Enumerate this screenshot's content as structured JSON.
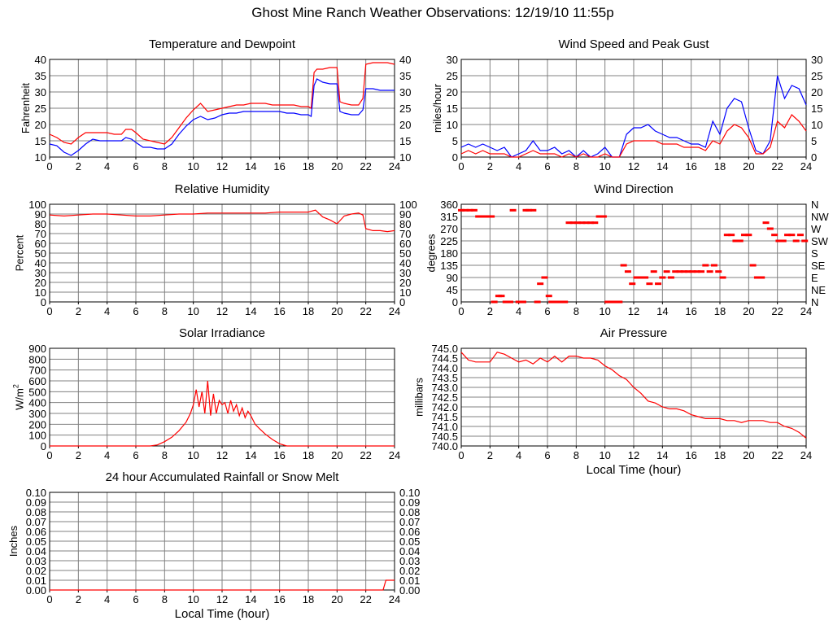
{
  "page_title": "Ghost Mine Ranch Weather Observations: 12/19/10 11:55p",
  "colors": {
    "red": "#ff0000",
    "blue": "#0000ff",
    "grid": "#808080"
  },
  "chart_data": [
    {
      "id": "temp",
      "type": "line",
      "title": "Temperature and Dewpoint",
      "ylabel": "Fahrenheit",
      "xlim": [
        0,
        24
      ],
      "ylim": [
        10,
        40
      ],
      "xticks": [
        0,
        2,
        4,
        6,
        8,
        10,
        12,
        14,
        16,
        18,
        20,
        22,
        24
      ],
      "yticks": [
        10,
        15,
        20,
        25,
        30,
        35,
        40
      ],
      "right_axis": true,
      "grid": true,
      "series": [
        {
          "color": "#ff0000",
          "x": [
            0,
            0.5,
            1,
            1.5,
            2,
            2.5,
            3,
            3.5,
            4,
            4.5,
            5,
            5.3,
            5.7,
            6,
            6.5,
            7,
            7.5,
            8,
            8.5,
            9,
            9.5,
            10,
            10.5,
            11,
            11.5,
            12,
            12.5,
            13,
            13.5,
            14,
            14.5,
            15,
            15.5,
            16,
            16.5,
            17,
            17.5,
            18,
            18.2,
            18.4,
            18.6,
            19,
            19.5,
            20,
            20.2,
            20.5,
            21,
            21.5,
            21.8,
            22,
            22.5,
            23,
            23.5,
            24
          ],
          "y": [
            17,
            16,
            14.5,
            14,
            16,
            17.5,
            17.5,
            17.5,
            17.5,
            17,
            17,
            18.5,
            18.5,
            17.5,
            15.5,
            15,
            14.5,
            14,
            16,
            19,
            22,
            24.5,
            26.5,
            24,
            24.5,
            25,
            25.5,
            26,
            26,
            26.5,
            26.5,
            26.5,
            26,
            26,
            26,
            26,
            25.5,
            25.5,
            25,
            36,
            37,
            37,
            37.5,
            37.5,
            27,
            26.5,
            26,
            26,
            28,
            38.5,
            39,
            39,
            39,
            38.5
          ]
        },
        {
          "color": "#0000ff",
          "x": [
            0,
            0.5,
            1,
            1.5,
            2,
            2.5,
            3,
            3.5,
            4,
            4.5,
            5,
            5.3,
            5.7,
            6,
            6.5,
            7,
            7.5,
            8,
            8.5,
            9,
            9.5,
            10,
            10.5,
            11,
            11.5,
            12,
            12.5,
            13,
            13.5,
            14,
            14.5,
            15,
            15.5,
            16,
            16.5,
            17,
            17.5,
            18,
            18.2,
            18.4,
            18.6,
            19,
            19.5,
            20,
            20.2,
            20.5,
            21,
            21.5,
            21.8,
            22,
            22.5,
            23,
            23.5,
            24
          ],
          "y": [
            14,
            13.5,
            11.5,
            10.5,
            12,
            14,
            15.5,
            15,
            15,
            15,
            15,
            16,
            15.5,
            14.5,
            13,
            13,
            12.5,
            12.5,
            14,
            17,
            19.5,
            21.5,
            22.5,
            21.5,
            22,
            23,
            23.5,
            23.5,
            24,
            24,
            24,
            24,
            24,
            24,
            23.5,
            23.5,
            23,
            23,
            22.5,
            32,
            34,
            33,
            32.5,
            32.5,
            24,
            23.5,
            23,
            23,
            24.5,
            31,
            31,
            30.5,
            30.5,
            30.5
          ]
        }
      ]
    },
    {
      "id": "wind",
      "type": "line",
      "title": "Wind Speed and Peak Gust",
      "ylabel": "miles/hour",
      "xlim": [
        0,
        24
      ],
      "ylim": [
        0,
        30
      ],
      "xticks": [
        0,
        2,
        4,
        6,
        8,
        10,
        12,
        14,
        16,
        18,
        20,
        22,
        24
      ],
      "yticks": [
        0,
        5,
        10,
        15,
        20,
        25,
        30
      ],
      "right_axis": true,
      "grid": true,
      "series": [
        {
          "color": "#0000ff",
          "x": [
            0,
            0.5,
            1,
            1.5,
            2,
            2.5,
            3,
            3.5,
            4,
            4.5,
            5,
            5.5,
            6,
            6.5,
            7,
            7.5,
            8,
            8.5,
            9,
            9.5,
            10,
            10.5,
            11,
            11.5,
            12,
            12.5,
            13,
            13.5,
            14,
            14.5,
            15,
            15.5,
            16,
            16.5,
            17,
            17.5,
            18,
            18.5,
            19,
            19.5,
            20,
            20.5,
            21,
            21.5,
            22,
            22.5,
            23,
            23.5,
            24
          ],
          "y": [
            3,
            4,
            3,
            4,
            3,
            2,
            3,
            0,
            1,
            2,
            5,
            2,
            2,
            3,
            1,
            2,
            0,
            2,
            0,
            1,
            3,
            0,
            0,
            7,
            9,
            9,
            10,
            8,
            7,
            6,
            6,
            5,
            4,
            4,
            3,
            11,
            7,
            15,
            18,
            17,
            9,
            2,
            1,
            5,
            25,
            18,
            22,
            21,
            16
          ]
        },
        {
          "color": "#ff0000",
          "x": [
            0,
            0.5,
            1,
            1.5,
            2,
            2.5,
            3,
            3.5,
            4,
            4.5,
            5,
            5.5,
            6,
            6.5,
            7,
            7.5,
            8,
            8.5,
            9,
            9.5,
            10,
            10.5,
            11,
            11.5,
            12,
            12.5,
            13,
            13.5,
            14,
            14.5,
            15,
            15.5,
            16,
            16.5,
            17,
            17.5,
            18,
            18.5,
            19,
            19.5,
            20,
            20.5,
            21,
            21.5,
            22,
            22.5,
            23,
            23.5,
            24
          ],
          "y": [
            1,
            2,
            1,
            2,
            1,
            1,
            1,
            0,
            0,
            1,
            2,
            1,
            1,
            1,
            0,
            1,
            0,
            1,
            0,
            0,
            1,
            0,
            0,
            4,
            5,
            5,
            5,
            5,
            4,
            4,
            4,
            3,
            3,
            3,
            2,
            5,
            4,
            8,
            10,
            9,
            6,
            1,
            1,
            3,
            11,
            9,
            13,
            11,
            8
          ]
        }
      ]
    },
    {
      "id": "rh",
      "type": "line",
      "title": "Relative Humidity",
      "ylabel": "Percent",
      "xlim": [
        0,
        24
      ],
      "ylim": [
        0,
        100
      ],
      "xticks": [
        0,
        2,
        4,
        6,
        8,
        10,
        12,
        14,
        16,
        18,
        20,
        22,
        24
      ],
      "yticks": [
        0,
        10,
        20,
        30,
        40,
        50,
        60,
        70,
        80,
        90,
        100
      ],
      "right_axis": true,
      "grid": true,
      "series": [
        {
          "color": "#ff0000",
          "x": [
            0,
            1,
            2,
            3,
            4,
            5,
            6,
            7,
            8,
            9,
            10,
            11,
            12,
            13,
            14,
            15,
            16,
            17,
            18,
            18.5,
            19,
            19.5,
            20,
            20.5,
            21,
            21.5,
            21.8,
            22,
            22.5,
            23,
            23.5,
            24
          ],
          "y": [
            89,
            88,
            89,
            90,
            90,
            89,
            88,
            88,
            89,
            90,
            90,
            91,
            91,
            91,
            91,
            91,
            92,
            92,
            92,
            94,
            87,
            84,
            80,
            88,
            90,
            91,
            89,
            75,
            73,
            73,
            72,
            73
          ]
        }
      ]
    },
    {
      "id": "wdir",
      "type": "scatter",
      "title": "Wind Direction",
      "ylabel": "degrees",
      "xlim": [
        0,
        24
      ],
      "ylim": [
        0,
        360
      ],
      "xticks": [
        0,
        2,
        4,
        6,
        8,
        10,
        12,
        14,
        16,
        18,
        20,
        22,
        24
      ],
      "yticks": [
        0,
        45,
        90,
        135,
        180,
        225,
        270,
        315,
        360
      ],
      "right_labels": [
        "N",
        "NE",
        "E",
        "SE",
        "S",
        "SW",
        "W",
        "NW",
        "N"
      ],
      "grid": true,
      "series": [
        {
          "color": "#ff0000",
          "x": [
            0,
            0.3,
            0.6,
            0.9,
            1.2,
            1.5,
            1.8,
            2.1,
            2.3,
            2.6,
            2.8,
            3.1,
            3.4,
            3.6,
            4.0,
            4.3,
            4.5,
            4.7,
            5.0,
            5.3,
            5.5,
            5.8,
            6.1,
            6.3,
            6.6,
            6.9,
            7.2,
            7.5,
            7.8,
            8.1,
            8.4,
            8.7,
            9.0,
            9.3,
            9.6,
            9.9,
            10.2,
            10.6,
            11.0,
            11.3,
            11.6,
            11.9,
            12.2,
            12.5,
            12.8,
            13.1,
            13.4,
            13.7,
            14.0,
            14.3,
            14.6,
            14.9,
            15.2,
            15.5,
            15.8,
            16.1,
            16.4,
            16.7,
            17.0,
            17.3,
            17.6,
            17.9,
            18.2,
            18.5,
            18.8,
            19.1,
            19.4,
            19.7,
            20.0,
            20.3,
            20.6,
            20.9,
            21.2,
            21.5,
            21.8,
            22.1,
            22.4,
            22.7,
            23.0,
            23.3,
            23.6,
            23.9
          ],
          "y": [
            338,
            338,
            338,
            338,
            315,
            315,
            315,
            315,
            0,
            22,
            22,
            0,
            0,
            338,
            0,
            0,
            338,
            338,
            338,
            0,
            67,
            90,
            22,
            0,
            0,
            0,
            0,
            292,
            292,
            292,
            292,
            292,
            292,
            292,
            315,
            315,
            0,
            0,
            0,
            135,
            112,
            67,
            90,
            90,
            90,
            67,
            112,
            67,
            90,
            112,
            90,
            112,
            112,
            112,
            112,
            112,
            112,
            112,
            135,
            112,
            135,
            112,
            90,
            247,
            247,
            225,
            225,
            247,
            247,
            135,
            90,
            90,
            292,
            270,
            247,
            225,
            225,
            247,
            247,
            225,
            247,
            225
          ]
        }
      ]
    },
    {
      "id": "solar",
      "type": "line",
      "title": "Solar Irradiance",
      "ylabel": "W/m2",
      "xlim": [
        0,
        24
      ],
      "ylim": [
        0,
        900
      ],
      "xticks": [
        0,
        2,
        4,
        6,
        8,
        10,
        12,
        14,
        16,
        18,
        20,
        22,
        24
      ],
      "yticks": [
        0,
        100,
        200,
        300,
        400,
        500,
        600,
        700,
        800,
        900
      ],
      "right_axis": false,
      "grid": true,
      "series": [
        {
          "color": "#ff0000",
          "x": [
            0,
            7,
            7.5,
            8,
            8.5,
            9,
            9.5,
            9.8,
            10,
            10.2,
            10.4,
            10.6,
            10.8,
            11,
            11.2,
            11.4,
            11.6,
            11.8,
            12,
            12.2,
            12.4,
            12.6,
            12.8,
            13,
            13.2,
            13.4,
            13.6,
            13.8,
            14,
            14.3,
            14.6,
            15,
            15.5,
            16,
            16.5,
            24
          ],
          "y": [
            0,
            0,
            10,
            40,
            80,
            140,
            220,
            300,
            380,
            520,
            360,
            500,
            300,
            600,
            280,
            480,
            300,
            420,
            380,
            400,
            300,
            420,
            320,
            380,
            280,
            350,
            260,
            320,
            280,
            200,
            160,
            110,
            60,
            20,
            0,
            0
          ]
        }
      ]
    },
    {
      "id": "pressure",
      "type": "line",
      "title": "Air Pressure",
      "ylabel": "millibars",
      "xlabel": "Local Time (hour)",
      "xlim": [
        0,
        24
      ],
      "ylim": [
        740.0,
        745.0
      ],
      "xticks": [
        0,
        2,
        4,
        6,
        8,
        10,
        12,
        14,
        16,
        18,
        20,
        22,
        24
      ],
      "yticks": [
        740.0,
        740.5,
        741.0,
        741.5,
        742.0,
        742.5,
        743.0,
        743.5,
        744.0,
        744.5,
        745.0
      ],
      "ytick_labels": [
        "740.0",
        "740.5",
        "741.0",
        "741.5",
        "742.0",
        "742.5",
        "743.0",
        "743.5",
        "744.0",
        "744.5",
        "745.0"
      ],
      "right_axis": false,
      "grid": true,
      "series": [
        {
          "color": "#ff0000",
          "x": [
            0,
            0.5,
            1,
            1.5,
            2,
            2.5,
            3,
            3.5,
            4,
            4.5,
            5,
            5.5,
            6,
            6.5,
            7,
            7.5,
            8,
            8.5,
            9,
            9.5,
            10,
            10.5,
            11,
            11.5,
            12,
            12.5,
            13,
            13.5,
            14,
            14.5,
            15,
            15.5,
            16,
            16.5,
            17,
            17.5,
            18,
            18.5,
            19,
            19.5,
            20,
            20.5,
            21,
            21.5,
            22,
            22.5,
            23,
            23.5,
            24
          ],
          "y": [
            744.8,
            744.4,
            744.3,
            744.3,
            744.3,
            744.8,
            744.7,
            744.5,
            744.3,
            744.4,
            744.2,
            744.5,
            744.3,
            744.6,
            744.3,
            744.6,
            744.6,
            744.5,
            744.5,
            744.4,
            744.1,
            743.9,
            743.6,
            743.4,
            743.0,
            742.7,
            742.3,
            742.2,
            742.0,
            741.9,
            741.9,
            741.8,
            741.6,
            741.5,
            741.4,
            741.4,
            741.4,
            741.3,
            741.3,
            741.2,
            741.3,
            741.3,
            741.3,
            741.2,
            741.2,
            741.0,
            740.9,
            740.7,
            740.4
          ]
        }
      ]
    },
    {
      "id": "rain",
      "type": "line",
      "title": "24 hour Accumulated Rainfall or Snow Melt",
      "ylabel": "Inches",
      "xlabel": "Local Time (hour)",
      "xlim": [
        0,
        24
      ],
      "ylim": [
        0,
        0.1
      ],
      "xticks": [
        0,
        2,
        4,
        6,
        8,
        10,
        12,
        14,
        16,
        18,
        20,
        22,
        24
      ],
      "yticks": [
        0.0,
        0.01,
        0.02,
        0.03,
        0.04,
        0.05,
        0.06,
        0.07,
        0.08,
        0.09,
        0.1
      ],
      "ytick_labels": [
        "0.00",
        "0.01",
        "0.02",
        "0.03",
        "0.04",
        "0.05",
        "0.06",
        "0.07",
        "0.08",
        "0.09",
        "0.10"
      ],
      "right_axis": true,
      "grid": true,
      "series": [
        {
          "color": "#ff0000",
          "x": [
            0,
            23.2,
            23.4,
            23.6,
            24
          ],
          "y": [
            0,
            0,
            0.01,
            0.01,
            0.01
          ]
        }
      ]
    }
  ]
}
